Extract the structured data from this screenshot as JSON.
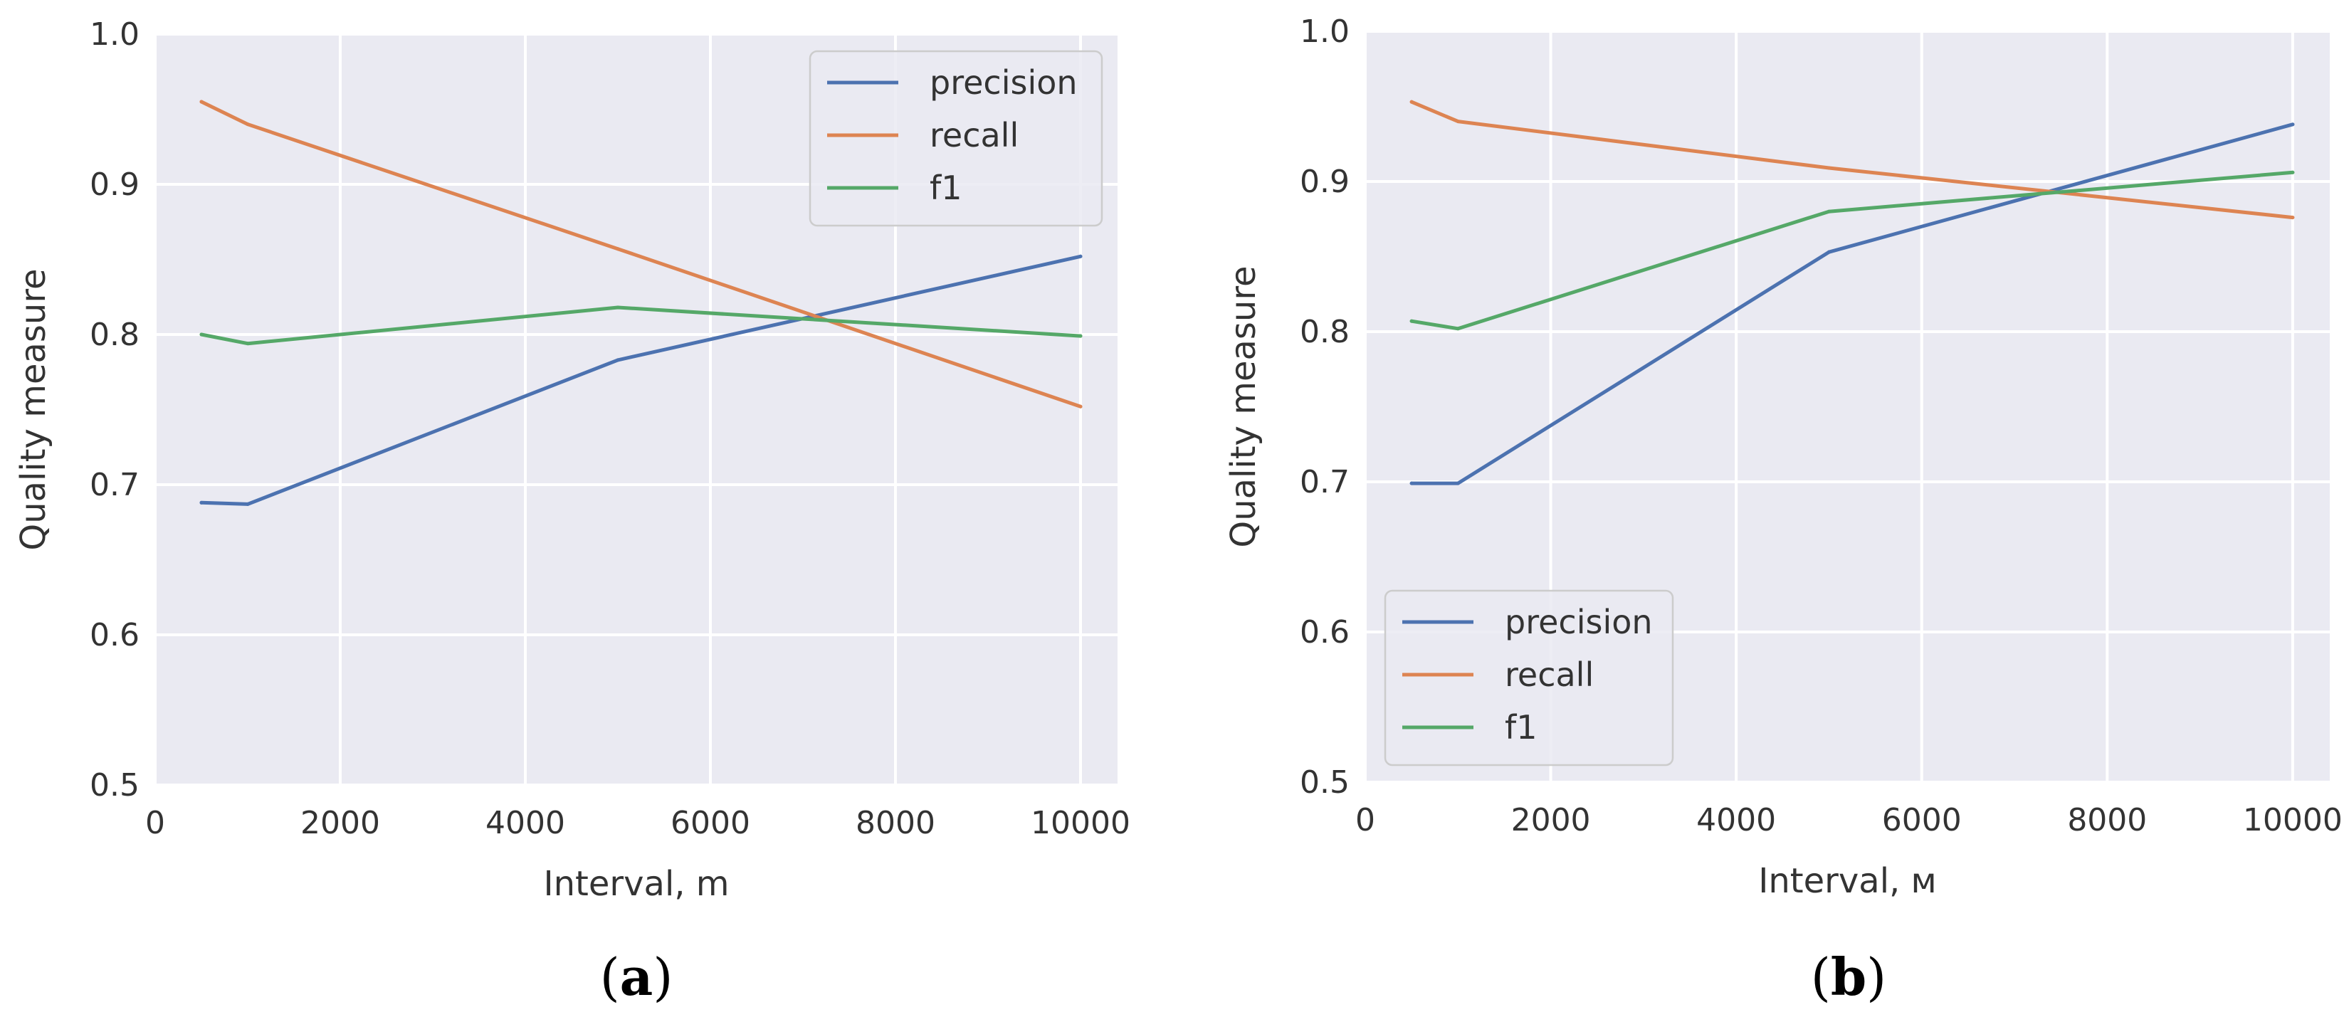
{
  "chart_data": [
    {
      "type": "line",
      "panel": "a",
      "caption_open": "(",
      "caption_letter": "a",
      "caption_close": ")",
      "title": "",
      "xlabel": "Interval, m",
      "ylabel": "Quality measure",
      "xlim": [
        0,
        10400
      ],
      "ylim": [
        0.5,
        1.0
      ],
      "xticks": [
        0,
        2000,
        4000,
        6000,
        8000,
        10000
      ],
      "yticks": [
        0.5,
        0.6,
        0.7,
        0.8,
        0.9,
        1.0
      ],
      "xtick_labels": [
        "0",
        "2000",
        "4000",
        "6000",
        "8000",
        "10000"
      ],
      "ytick_labels": [
        "0.5",
        "0.6",
        "0.7",
        "0.8",
        "0.9",
        "1.0"
      ],
      "legend_position": "top-right",
      "x": [
        500,
        1000,
        5000,
        10000
      ],
      "series": [
        {
          "name": "precision",
          "color": "#4c72b0",
          "values": [
            0.688,
            0.687,
            0.783,
            0.852
          ]
        },
        {
          "name": "recall",
          "color": "#dd8452",
          "values": [
            0.955,
            0.94,
            0.857,
            0.752
          ]
        },
        {
          "name": "f1",
          "color": "#55a868",
          "values": [
            0.8,
            0.794,
            0.818,
            0.799
          ]
        }
      ]
    },
    {
      "type": "line",
      "panel": "b",
      "caption_open": "(",
      "caption_letter": "b",
      "caption_close": ")",
      "title": "",
      "xlabel": "Interval, м",
      "ylabel": "Quality measure",
      "xlim": [
        0,
        10400
      ],
      "ylim": [
        0.5,
        1.0
      ],
      "xticks": [
        0,
        2000,
        4000,
        6000,
        8000,
        10000
      ],
      "yticks": [
        0.5,
        0.6,
        0.7,
        0.8,
        0.9,
        1.0
      ],
      "xtick_labels": [
        "0",
        "2000",
        "4000",
        "6000",
        "8000",
        "10000"
      ],
      "ytick_labels": [
        "0.5",
        "0.6",
        "0.7",
        "0.8",
        "0.9",
        "1.0"
      ],
      "legend_position": "bottom-left",
      "x": [
        500,
        1000,
        5000,
        10000
      ],
      "series": [
        {
          "name": "precision",
          "color": "#4c72b0",
          "values": [
            0.699,
            0.699,
            0.853,
            0.938
          ]
        },
        {
          "name": "recall",
          "color": "#dd8452",
          "values": [
            0.953,
            0.94,
            0.909,
            0.876
          ]
        },
        {
          "name": "f1",
          "color": "#55a868",
          "values": [
            0.807,
            0.802,
            0.88,
            0.906
          ]
        }
      ]
    }
  ]
}
